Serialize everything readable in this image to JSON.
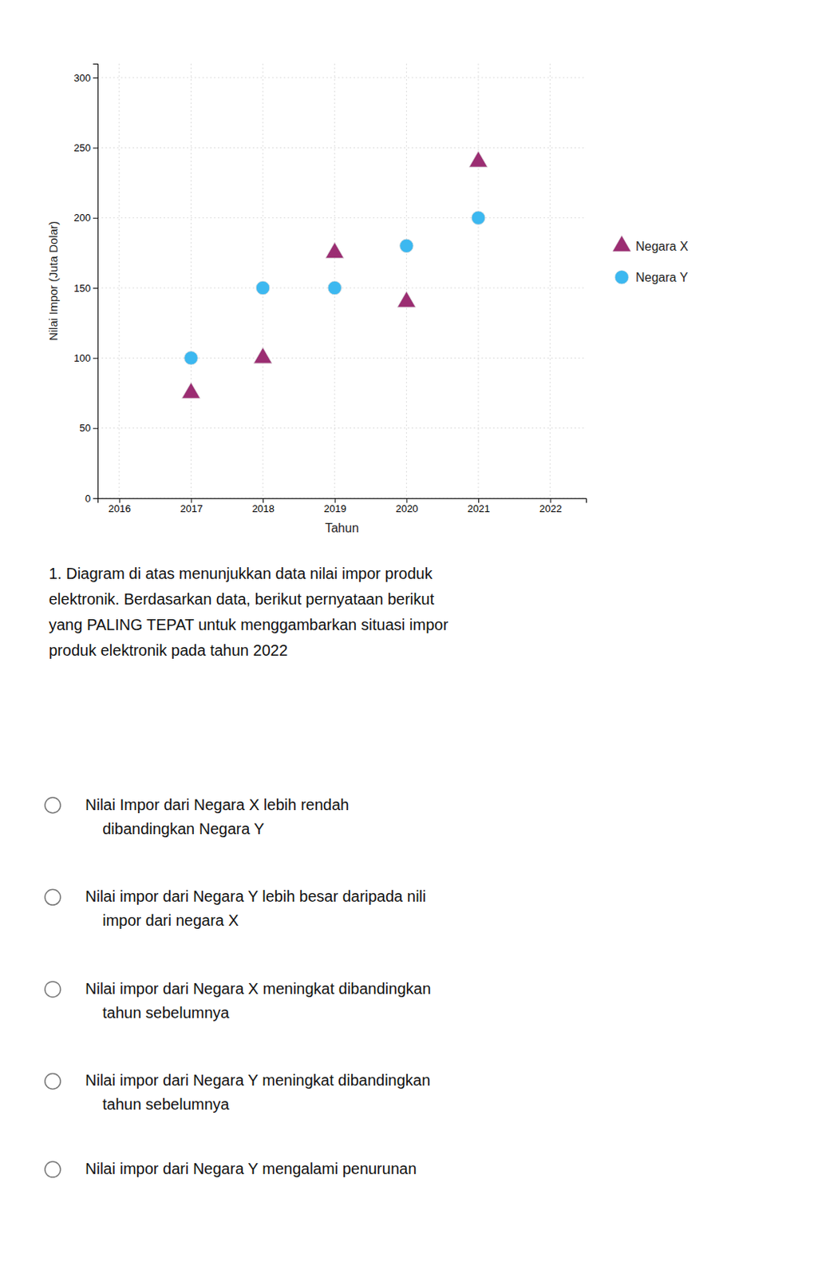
{
  "chart_data": {
    "type": "scatter",
    "xlabel": "Tahun",
    "ylabel": "Nilai Impor (Juta Dolar)",
    "series": [
      {
        "name": "Negara X",
        "color": "#9B2D72",
        "marker": "triangle",
        "x": [
          2017,
          2018,
          2019,
          2020,
          2021
        ],
        "values": [
          75,
          100,
          175,
          140,
          240
        ]
      },
      {
        "name": "Negara Y",
        "color": "#3CB8F0",
        "marker": "circle",
        "x": [
          2017,
          2018,
          2019,
          2020,
          2021
        ],
        "values": [
          100,
          150,
          150,
          180,
          200
        ]
      }
    ],
    "xlim": [
      2015.7,
      2022.5
    ],
    "ylim": [
      0,
      310
    ],
    "xticks": [
      2016,
      2017,
      2018,
      2019,
      2020,
      2021,
      2022
    ],
    "yticks": [
      0,
      50,
      100,
      150,
      200,
      250,
      300
    ],
    "grid": true,
    "legend": "right"
  },
  "question": "1. Diagram di atas menunjukkan data nilai impor produk\nelektronik. Berdasarkan data, berikut pernyataan berikut\nyang PALING TEPAT untuk menggambarkan situasi impor\nproduk elektronik pada tahun 2022",
  "options": [
    "Nilai Impor dari Negara X lebih rendah\n    dibandingkan Negara Y",
    "Nilai impor dari Negara Y lebih besar daripada nili\n    impor dari negara X",
    "Nilai impor dari Negara X meningkat dibandingkan\n    tahun sebelumnya",
    "Nilai impor dari Negara Y meningkat dibandingkan\n    tahun sebelumnya",
    "Nilai impor dari Negara Y mengalami penurunan"
  ]
}
